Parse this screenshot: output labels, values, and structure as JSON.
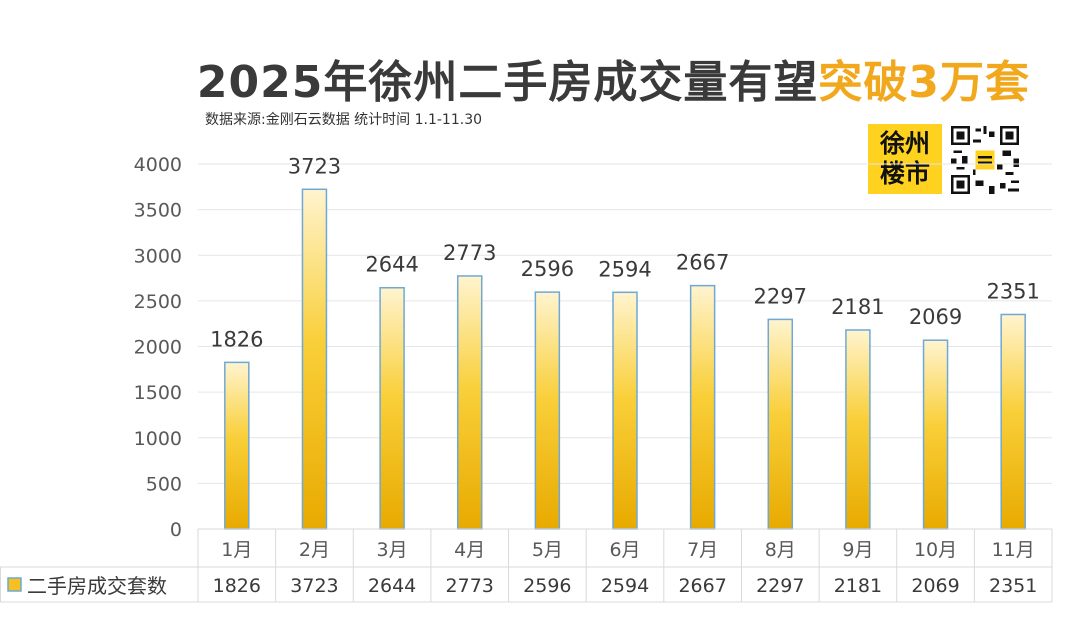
{
  "header": {
    "title_main": "2025年徐州二手房成交量有望",
    "title_highlight": "突破3万套",
    "subtitle": "数据来源:金刚石云数据 统计时间  1.1-11.30"
  },
  "logo": {
    "line1": "徐州",
    "line2": "楼市",
    "icon": "qr-code-icon"
  },
  "colors": {
    "bar_top": "#fff4cf",
    "bar_bottom": "#e8aa00",
    "highlight": "#f2a81d"
  },
  "chart_data": {
    "type": "bar",
    "categories": [
      "1月",
      "2月",
      "3月",
      "4月",
      "5月",
      "6月",
      "7月",
      "8月",
      "9月",
      "10月",
      "11月"
    ],
    "series": [
      {
        "name": "二手房成交套数",
        "values": [
          1826,
          3723,
          2644,
          2773,
          2596,
          2594,
          2667,
          2297,
          2181,
          2069,
          2351
        ]
      }
    ],
    "yticks": [
      "0",
      "500",
      "1000",
      "1500",
      "2000",
      "2500",
      "3000",
      "3500",
      "4000"
    ],
    "ylim": [
      0,
      4000
    ],
    "grid": true,
    "data_table": true
  }
}
